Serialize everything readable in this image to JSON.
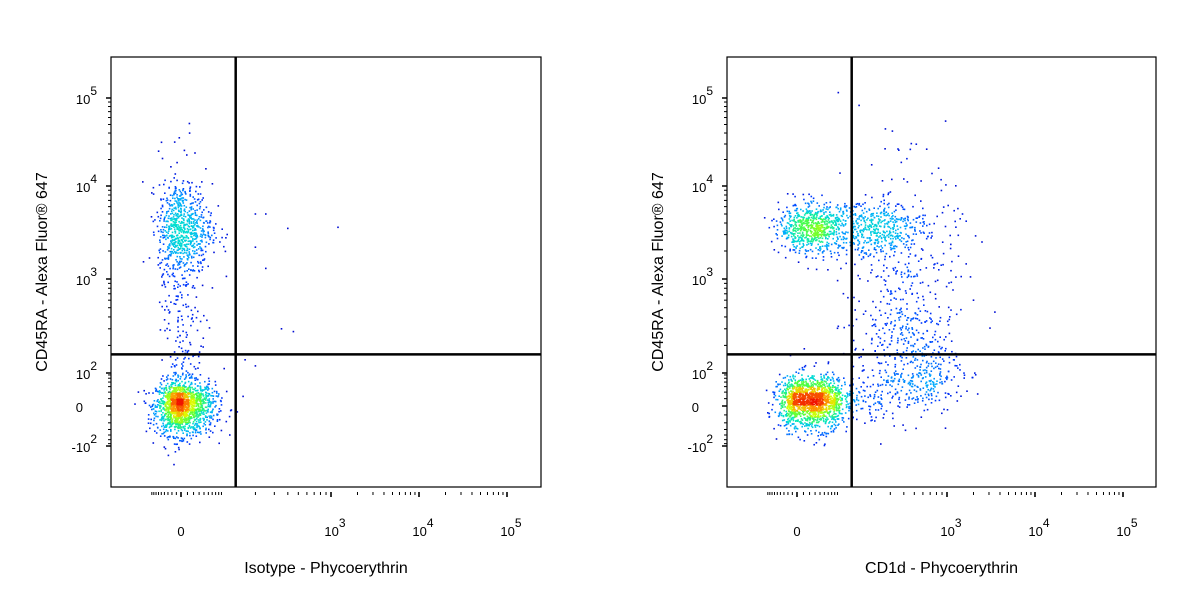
{
  "chart_data": [
    {
      "type": "scatter",
      "subtype": "flow-cytometry-density",
      "xlabel": "Isotype - Phycoerythrin",
      "ylabel": "CD45RA - Alexa Fluor® 647",
      "x_scale": "biexponential",
      "y_scale": "biexponential",
      "x_ticks": [
        {
          "value": 0,
          "base": "0",
          "exp": ""
        },
        {
          "value": 1000,
          "base": "10",
          "exp": "3"
        },
        {
          "value": 10000,
          "base": "10",
          "exp": "4"
        },
        {
          "value": 100000,
          "base": "10",
          "exp": "5"
        }
      ],
      "y_ticks": [
        {
          "value": -100,
          "base": "-10",
          "exp": "2"
        },
        {
          "value": 0,
          "base": "0",
          "exp": ""
        },
        {
          "value": 100,
          "base": "10",
          "exp": "2"
        },
        {
          "value": 1000,
          "base": "10",
          "exp": "3"
        },
        {
          "value": 10000,
          "base": "10",
          "exp": "4"
        },
        {
          "value": 100000,
          "base": "10",
          "exp": "5"
        }
      ],
      "quadrant_gate": {
        "x": 130,
        "y": 160
      },
      "populations": [
        {
          "x": 0,
          "y": 0,
          "count": 1500,
          "spread_x": 0.65,
          "spread_y": 0.6
        },
        {
          "x": 0,
          "y": 3500,
          "count": 650,
          "spread_x": 0.6,
          "spread_y": 0.55
        },
        {
          "x": 0,
          "y": 700,
          "count": 280,
          "spread_x": 0.5,
          "spread_y": 1.8
        }
      ],
      "outliers": [
        {
          "x": 200,
          "y": 5000
        },
        {
          "x": 250,
          "y": 5000
        },
        {
          "x": 400,
          "y": 3500
        },
        {
          "x": 1200,
          "y": 3600
        },
        {
          "x": 200,
          "y": 2200
        },
        {
          "x": 250,
          "y": 1300
        },
        {
          "x": 350,
          "y": 300
        },
        {
          "x": 450,
          "y": 280
        },
        {
          "x": 160,
          "y": 140
        },
        {
          "x": 200,
          "y": 120
        }
      ],
      "grid": false
    },
    {
      "type": "scatter",
      "subtype": "flow-cytometry-density",
      "xlabel": "CD1d - Phycoerythrin",
      "ylabel": "CD45RA - Alexa Fluor® 647",
      "x_scale": "biexponential",
      "y_scale": "biexponential",
      "x_ticks": [
        {
          "value": 0,
          "base": "0",
          "exp": ""
        },
        {
          "value": 1000,
          "base": "10",
          "exp": "3"
        },
        {
          "value": 10000,
          "base": "10",
          "exp": "4"
        },
        {
          "value": 100000,
          "base": "10",
          "exp": "5"
        }
      ],
      "y_ticks": [
        {
          "value": -100,
          "base": "-10",
          "exp": "2"
        },
        {
          "value": 0,
          "base": "0",
          "exp": ""
        },
        {
          "value": 100,
          "base": "10",
          "exp": "2"
        },
        {
          "value": 1000,
          "base": "10",
          "exp": "3"
        },
        {
          "value": 10000,
          "base": "10",
          "exp": "4"
        },
        {
          "value": 100000,
          "base": "10",
          "exp": "5"
        }
      ],
      "quadrant_gate": {
        "x": 130,
        "y": 160
      },
      "populations": [
        {
          "x": 25,
          "y": 10,
          "count": 1600,
          "spread_x": 0.75,
          "spread_y": 0.6
        },
        {
          "x": 30,
          "y": 3500,
          "count": 750,
          "spread_x": 0.8,
          "spread_y": 0.3
        },
        {
          "x": 250,
          "y": 3500,
          "count": 350,
          "spread_x": 0.45,
          "spread_y": 0.35
        },
        {
          "x": 500,
          "y": 100,
          "count": 380,
          "spread_x": 0.55,
          "spread_y": 0.9
        },
        {
          "x": 400,
          "y": 700,
          "count": 380,
          "spread_x": 0.6,
          "spread_y": 1.6
        }
      ],
      "outliers": [
        {
          "x": 400,
          "y": 12000
        },
        {
          "x": 100,
          "y": 14000
        },
        {
          "x": 1500,
          "y": 5000
        },
        {
          "x": 2500,
          "y": 2500
        },
        {
          "x": 3500,
          "y": 450
        },
        {
          "x": 2000,
          "y": 600
        }
      ],
      "grid": false
    }
  ]
}
